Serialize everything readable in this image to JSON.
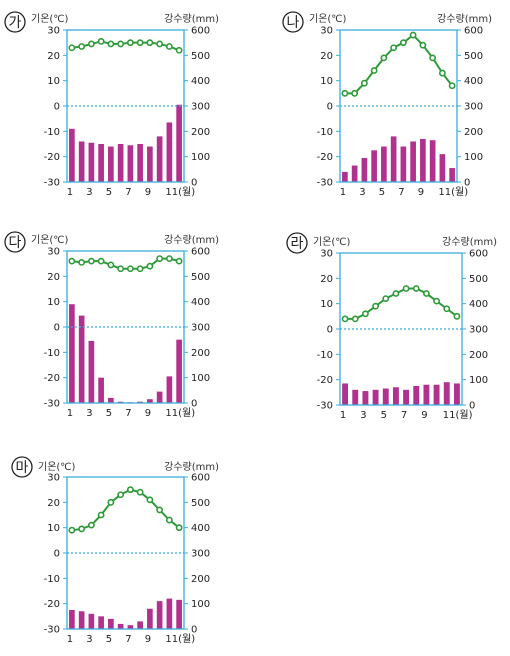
{
  "common": {
    "temp_label": "기온(℃)",
    "precip_label": "강수량(mm)",
    "temp_ticks": [
      "30",
      "20",
      "10",
      "0",
      "-10",
      "-20",
      "-30"
    ],
    "precip_ticks": [
      "600",
      "500",
      "400",
      "300",
      "200",
      "100",
      "0"
    ],
    "month_ticks": [
      "1",
      "3",
      "5",
      "7",
      "9",
      "11(월)"
    ]
  },
  "colors": {
    "axis": "#3aaed8",
    "line": "#2f9a3a",
    "bar": "#b0318e",
    "zero": "#3aaed8"
  },
  "chart_data": [
    {
      "type": "bar+line",
      "label": "가",
      "months": [
        1,
        2,
        3,
        4,
        5,
        6,
        7,
        8,
        9,
        10,
        11,
        12
      ],
      "temperature": [
        23,
        23.5,
        24.5,
        25.5,
        24.5,
        24.5,
        25,
        25,
        25,
        24.5,
        23.5,
        22
      ],
      "precipitation": [
        210,
        160,
        155,
        150,
        140,
        150,
        145,
        150,
        140,
        180,
        235,
        305
      ],
      "ylim_temp": [
        -30,
        30
      ],
      "ylim_precip": [
        0,
        600
      ]
    },
    {
      "type": "bar+line",
      "label": "나",
      "months": [
        1,
        2,
        3,
        4,
        5,
        6,
        7,
        8,
        9,
        10,
        11,
        12
      ],
      "temperature": [
        5,
        5,
        9,
        14,
        19,
        23,
        25,
        28,
        24,
        19,
        13,
        8
      ],
      "precipitation": [
        40,
        65,
        95,
        125,
        140,
        180,
        140,
        160,
        170,
        165,
        110,
        55
      ],
      "ylim_temp": [
        -30,
        30
      ],
      "ylim_precip": [
        0,
        600
      ]
    },
    {
      "type": "bar+line",
      "label": "다",
      "months": [
        1,
        2,
        3,
        4,
        5,
        6,
        7,
        8,
        9,
        10,
        11,
        12
      ],
      "temperature": [
        26,
        25.5,
        26,
        26,
        24.5,
        23,
        23,
        23,
        24,
        27,
        27,
        26
      ],
      "precipitation": [
        390,
        345,
        245,
        100,
        20,
        5,
        3,
        5,
        15,
        45,
        105,
        250
      ],
      "ylim_temp": [
        -30,
        30
      ],
      "ylim_precip": [
        0,
        600
      ]
    },
    {
      "type": "bar+line",
      "label": "라",
      "months": [
        1,
        2,
        3,
        4,
        5,
        6,
        7,
        8,
        9,
        10,
        11,
        12
      ],
      "temperature": [
        4,
        4,
        6,
        9,
        12,
        14,
        16,
        16,
        14,
        11,
        8,
        5
      ],
      "precipitation": [
        85,
        60,
        55,
        60,
        65,
        70,
        60,
        75,
        80,
        80,
        90,
        85
      ],
      "ylim_temp": [
        -30,
        30
      ],
      "ylim_precip": [
        0,
        600
      ]
    },
    {
      "type": "bar+line",
      "label": "마",
      "months": [
        1,
        2,
        3,
        4,
        5,
        6,
        7,
        8,
        9,
        10,
        11,
        12
      ],
      "temperature": [
        9,
        9.5,
        11,
        15,
        20,
        23,
        25,
        24,
        21,
        17,
        13,
        10
      ],
      "precipitation": [
        75,
        70,
        60,
        50,
        40,
        20,
        15,
        30,
        80,
        110,
        120,
        115
      ],
      "ylim_temp": [
        -30,
        30
      ],
      "ylim_precip": [
        0,
        600
      ]
    }
  ]
}
